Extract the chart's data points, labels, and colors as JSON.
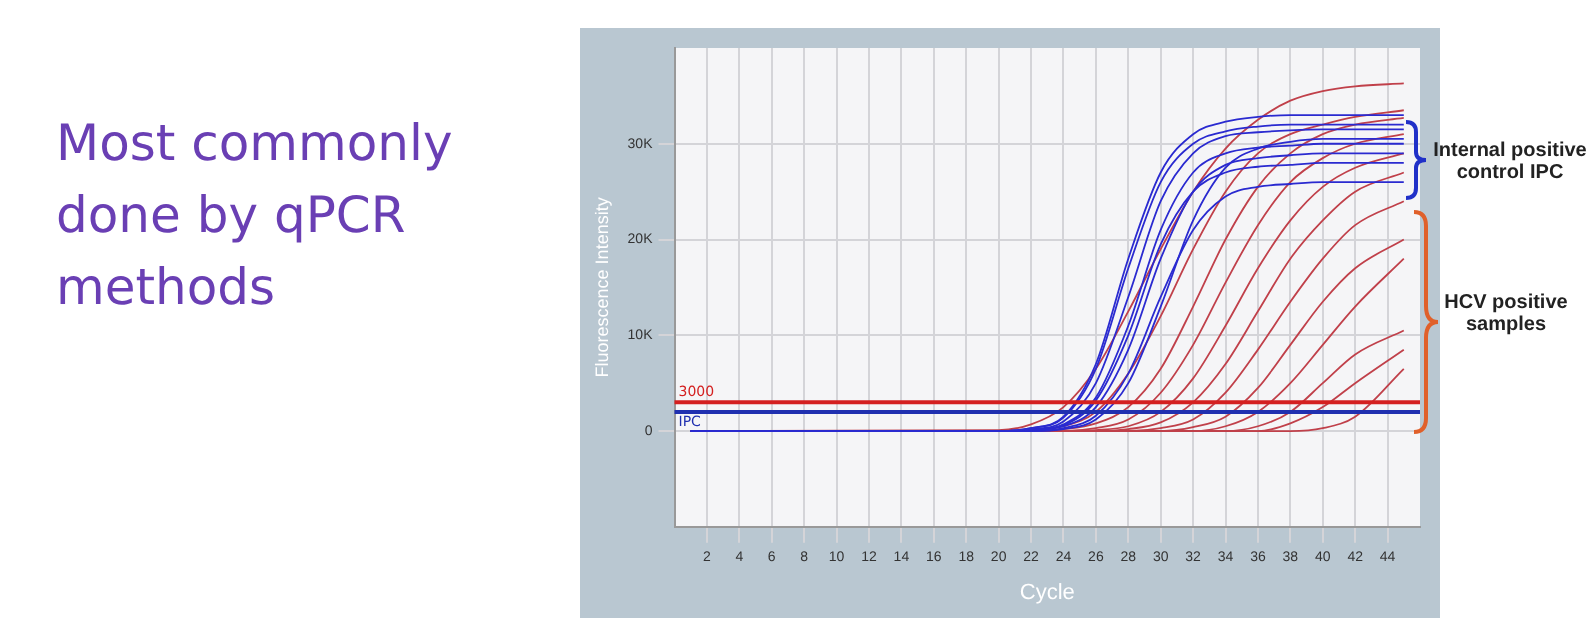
{
  "chart_data": {
    "type": "line",
    "title": "Most commonly done by qPCR methods",
    "xlabel": "Cycle",
    "ylabel": "Fluorescence Intensity",
    "annotations": [
      "Internal positive control IPC",
      "HCV positive samples"
    ],
    "xlim": [
      0,
      46
    ],
    "xticks": [
      2,
      4,
      6,
      8,
      10,
      12,
      14,
      16,
      18,
      20,
      22,
      24,
      26,
      28,
      30,
      32,
      34,
      36,
      38,
      40,
      42,
      44
    ],
    "ylim": [
      -10000,
      40000
    ],
    "yticks": [
      0,
      {
        "value": 10000,
        "label": "10K"
      },
      {
        "value": 20000,
        "label": "20K"
      },
      {
        "value": 30000,
        "label": "30K"
      }
    ],
    "grid": true,
    "legend": false,
    "marker": "none",
    "line_style": "solid",
    "ref_lines": [
      {
        "axis": "y",
        "value": 3000,
        "label": "3000",
        "color": "#d42020"
      },
      {
        "axis": "y",
        "value": 2000,
        "label": "IPC",
        "color": "#2030b0"
      }
    ],
    "x": [
      1,
      20,
      22,
      24,
      26,
      28,
      30,
      32,
      34,
      36,
      38,
      40,
      42,
      45
    ],
    "series": [
      {
        "color": "#2a2ad0",
        "values": [
          0,
          0,
          300,
          1500,
          7000,
          18000,
          27000,
          31000,
          32300,
          32800,
          33000,
          33000,
          33000,
          33000
        ]
      },
      {
        "color": "#2a2ad0",
        "values": [
          0,
          0,
          200,
          1000,
          5000,
          14000,
          24000,
          29000,
          30800,
          31200,
          31400,
          31500,
          31500,
          31500
        ]
      },
      {
        "color": "#2a2ad0",
        "values": [
          0,
          0,
          100,
          700,
          3500,
          11000,
          21000,
          27000,
          29000,
          29600,
          29800,
          30000,
          30000,
          30000
        ]
      },
      {
        "color": "#2a2ad0",
        "values": [
          0,
          0,
          100,
          500,
          2500,
          8500,
          18000,
          25000,
          27800,
          28500,
          28800,
          29000,
          29000,
          29000
        ]
      },
      {
        "color": "#2a2ad0",
        "values": [
          0,
          0,
          100,
          600,
          3200,
          10000,
          19500,
          25000,
          27000,
          27600,
          27800,
          28000,
          28000,
          28000
        ]
      },
      {
        "color": "#2a2ad0",
        "values": [
          0,
          0,
          0,
          300,
          1600,
          6000,
          14000,
          21000,
          24500,
          25500,
          25800,
          26000,
          26000,
          26000
        ]
      },
      {
        "color": "#2a2ad0",
        "values": [
          0,
          0,
          300,
          1400,
          6500,
          17000,
          26000,
          30000,
          31300,
          31800,
          32000,
          32000,
          32000,
          32000
        ]
      },
      {
        "color": "#2a2ad0",
        "values": [
          0,
          0,
          0,
          200,
          1200,
          5000,
          13000,
          22000,
          27500,
          29500,
          30200,
          30500,
          30500,
          30500
        ]
      },
      {
        "color": "#c0404a",
        "values": [
          0,
          100,
          700,
          2500,
          6500,
          12500,
          19000,
          25000,
          29500,
          32500,
          34500,
          35500,
          36000,
          36300
        ]
      },
      {
        "color": "#c0404a",
        "values": [
          0,
          0,
          100,
          500,
          2000,
          6000,
          12000,
          19000,
          25000,
          29000,
          31000,
          32000,
          32800,
          33500
        ]
      },
      {
        "color": "#c0404a",
        "values": [
          0,
          0,
          0,
          200,
          800,
          2500,
          6500,
          13000,
          20000,
          25500,
          29000,
          31000,
          32000,
          32700
        ]
      },
      {
        "color": "#c0404a",
        "values": [
          0,
          0,
          0,
          0,
          300,
          1200,
          4000,
          9000,
          15500,
          21500,
          26000,
          28500,
          30000,
          31000
        ]
      },
      {
        "color": "#c0404a",
        "values": [
          0,
          0,
          0,
          0,
          100,
          500,
          2000,
          5500,
          11000,
          17000,
          22000,
          25500,
          27500,
          29000
        ]
      },
      {
        "color": "#c0404a",
        "values": [
          0,
          0,
          0,
          0,
          0,
          200,
          900,
          3000,
          7000,
          12500,
          18000,
          22000,
          25000,
          27000
        ]
      },
      {
        "color": "#c0404a",
        "values": [
          0,
          0,
          0,
          0,
          0,
          0,
          300,
          1200,
          4000,
          8500,
          13500,
          18000,
          21500,
          24000
        ]
      },
      {
        "color": "#c0404a",
        "values": [
          0,
          0,
          0,
          0,
          0,
          0,
          0,
          400,
          1500,
          4500,
          9000,
          13500,
          17000,
          20000
        ]
      },
      {
        "color": "#c0404a",
        "values": [
          0,
          0,
          0,
          0,
          0,
          0,
          0,
          0,
          500,
          2000,
          5000,
          9000,
          13000,
          18000
        ]
      },
      {
        "color": "#c0404a",
        "values": [
          0,
          0,
          0,
          0,
          0,
          0,
          0,
          0,
          0,
          500,
          2000,
          5000,
          8000,
          10500
        ]
      },
      {
        "color": "#c0404a",
        "values": [
          0,
          0,
          0,
          0,
          0,
          0,
          0,
          0,
          0,
          0,
          800,
          2500,
          5000,
          8500
        ]
      },
      {
        "color": "#c0404a",
        "values": [
          0,
          0,
          0,
          0,
          0,
          0,
          0,
          0,
          0,
          0,
          0,
          300,
          1500,
          6500
        ]
      }
    ]
  }
}
